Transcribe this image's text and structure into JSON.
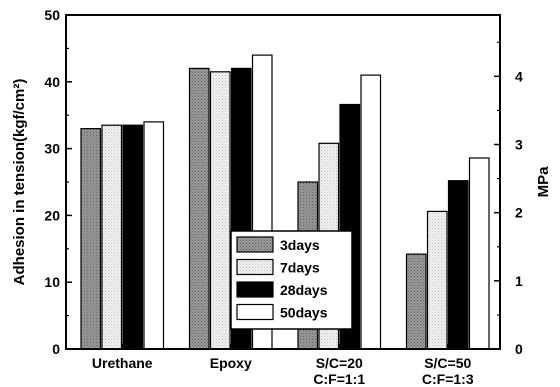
{
  "chart_data": {
    "type": "bar",
    "categories": [
      {
        "line1": "Urethane",
        "line2": ""
      },
      {
        "line1": "Epoxy",
        "line2": ""
      },
      {
        "line1": "S/C=20",
        "line2": "C:F=1:1"
      },
      {
        "line1": "S/C=50",
        "line2": "C:F=1:3"
      }
    ],
    "series": [
      {
        "name": "3days",
        "values": [
          33.0,
          42.0,
          25.0,
          14.2
        ],
        "pattern": "dots-gray",
        "color": "#8a8a8a"
      },
      {
        "name": "7days",
        "values": [
          33.5,
          41.5,
          30.8,
          20.6
        ],
        "pattern": "dots-light",
        "color": "#e8e8e8"
      },
      {
        "name": "28days",
        "values": [
          33.5,
          42.0,
          36.6,
          25.2
        ],
        "pattern": "solid-black",
        "color": "#000000"
      },
      {
        "name": "50days",
        "values": [
          34.0,
          44.0,
          41.0,
          28.6
        ],
        "pattern": "white",
        "color": "#ffffff"
      }
    ],
    "ylabel": "Adhesion in tension(kgf/cm²)",
    "ylim": [
      0,
      50
    ],
    "yticks": [
      "0",
      "10",
      "20",
      "30",
      "40",
      "50"
    ],
    "y2label": "MPa",
    "y2lim": [
      0,
      4.9
    ],
    "y2ticks": [
      "0",
      "1",
      "2",
      "3",
      "4"
    ],
    "legend_position": "center-right"
  }
}
